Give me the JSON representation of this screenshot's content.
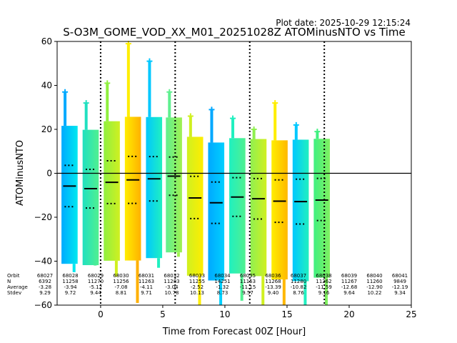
{
  "chart_data": {
    "type": "scatter",
    "title": "S-O3M_GOME_VOD_XX_M01_20251028Z ATOMinusNTO vs Time",
    "subtitle": "Plot date: 2025-10-29 12:15:24",
    "xlabel": "Time from Forecast 00Z [Hour]",
    "ylabel": "ATOMinusNTO",
    "xlim": [
      -3.5,
      25
    ],
    "ylim": [
      -60,
      60
    ],
    "xticks": [
      0,
      5,
      10,
      15,
      20,
      25
    ],
    "yticks": [
      -60,
      -40,
      -20,
      0,
      20,
      40,
      60
    ],
    "vlines": [
      0,
      6,
      12,
      18
    ],
    "hline": 0,
    "grid": false,
    "stat_labels": [
      "Orbit",
      "N",
      "Average",
      "Stdev"
    ],
    "orbits": [
      {
        "orbit": "68027",
        "n": "6392",
        "average": "-3.28",
        "stdev": "9.29"
      },
      {
        "orbit": "68028",
        "n": "11258",
        "average": "-3.94",
        "stdev": "9.72"
      },
      {
        "orbit": "68029",
        "n": "11270",
        "average": "-5.12",
        "stdev": "9.44"
      },
      {
        "orbit": "68030",
        "n": "11256",
        "average": "-7.08",
        "stdev": "8.81"
      },
      {
        "orbit": "68031",
        "n": "11263",
        "average": "-4.11",
        "stdev": "9.71"
      },
      {
        "orbit": "68032",
        "n": "11283",
        "average": "-3.04",
        "stdev": "10.78"
      },
      {
        "orbit": "68033",
        "n": "11255",
        "average": "-2.52",
        "stdev": "10.13"
      },
      {
        "orbit": "68034",
        "n": "14251",
        "average": "-1.32",
        "stdev": "8.73"
      },
      {
        "orbit": "68035",
        "n": "11153",
        "average": "-11.15",
        "stdev": "9.57"
      },
      {
        "orbit": "68036",
        "n": "11268",
        "average": "-13.39",
        "stdev": "9.40"
      },
      {
        "orbit": "68037",
        "n": "11280",
        "average": "-10.82",
        "stdev": "8.76"
      },
      {
        "orbit": "68038",
        "n": "11262",
        "average": "-11.59",
        "stdev": "9.16"
      },
      {
        "orbit": "68039",
        "n": "11267",
        "average": "-12.68",
        "stdev": "9.64"
      },
      {
        "orbit": "68040",
        "n": "11260",
        "average": "-12.90",
        "stdev": "10.22"
      },
      {
        "orbit": "68041",
        "n": "9849",
        "average": "-12.19",
        "stdev": "9.34"
      }
    ],
    "strips": [
      {
        "orbit": "68027",
        "x": -2.5,
        "min": -45,
        "max": 37,
        "median": -5.8,
        "q_low": -15.2,
        "q_high": 3.6,
        "colors": [
          "#00aaff",
          "#00e8f0"
        ]
      },
      {
        "orbit": "68028",
        "x": -0.8,
        "min": -42,
        "max": 32,
        "median": -7.0,
        "q_low": -15.8,
        "q_high": 1.8,
        "colors": [
          "#20e0c0",
          "#50f090"
        ]
      },
      {
        "orbit": "68030",
        "x": 0.9,
        "min": -47,
        "max": 41,
        "median": -4.1,
        "q_low": -13.8,
        "q_high": 5.7,
        "colors": [
          "#90f040",
          "#d0f020"
        ]
      },
      {
        "orbit": "68032",
        "x": 2.6,
        "min": -59,
        "max": 59,
        "median": -3.0,
        "q_low": -13.7,
        "q_high": 7.7,
        "colors": [
          "#ffee00",
          "#ffb000"
        ]
      },
      {
        "orbit": "68033",
        "x": 4.3,
        "min": -43,
        "max": 51,
        "median": -2.5,
        "q_low": -12.6,
        "q_high": 7.6,
        "colors": [
          "#00c8ff",
          "#20f0c0"
        ]
      },
      {
        "orbit": "68034",
        "x": 5.9,
        "min": -38,
        "max": 37,
        "median": -1.3,
        "q_low": -10.0,
        "q_high": 7.4,
        "colors": [
          "#60f090",
          "#a0f050"
        ]
      },
      {
        "orbit": "68035",
        "x": 7.6,
        "min": -60,
        "max": 26,
        "median": -11.2,
        "q_low": -20.6,
        "q_high": -1.4,
        "colors": [
          "#d0f020",
          "#ffee00"
        ]
      },
      {
        "orbit": "68036",
        "x": 9.3,
        "min": -60,
        "max": 29,
        "median": -13.4,
        "q_low": -22.8,
        "q_high": -4.0,
        "colors": [
          "#00a8ff",
          "#00d0ff"
        ]
      },
      {
        "orbit": "68037",
        "x": 11.0,
        "min": -58,
        "max": 25,
        "median": -10.8,
        "q_low": -19.6,
        "q_high": -2.0,
        "colors": [
          "#20f0c0",
          "#50f090"
        ]
      },
      {
        "orbit": "68038",
        "x": 12.7,
        "min": -60,
        "max": 20,
        "median": -11.6,
        "q_low": -20.8,
        "q_high": -2.4,
        "colors": [
          "#90f050",
          "#d0f020"
        ]
      },
      {
        "orbit": "68039",
        "x": 14.4,
        "min": -60,
        "max": 32,
        "median": -12.7,
        "q_low": -22.3,
        "q_high": -3.0,
        "colors": [
          "#ffee00",
          "#ffb800"
        ]
      },
      {
        "orbit": "68040",
        "x": 16.1,
        "min": -60,
        "max": 22,
        "median": -12.9,
        "q_low": -23.1,
        "q_high": -2.7,
        "colors": [
          "#00c8ff",
          "#20f0c0"
        ]
      },
      {
        "orbit": "68041",
        "x": 17.8,
        "min": -60,
        "max": 19,
        "median": -12.2,
        "q_low": -21.5,
        "q_high": -2.3,
        "colors": [
          "#40f080",
          "#80f060"
        ]
      }
    ]
  }
}
